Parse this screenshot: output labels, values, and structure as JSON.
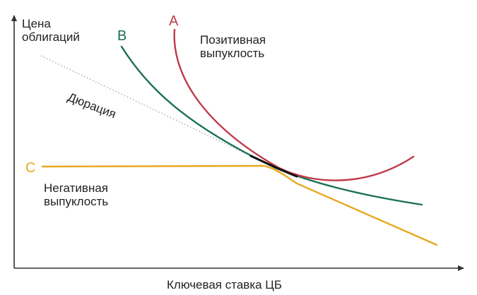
{
  "axes": {
    "y_label": "Цена\nоблигаций",
    "x_label": "Ключевая ставка ЦБ"
  },
  "curves": [
    {
      "letter": "A",
      "label": "Позитивная\nвыпуклость",
      "color": "#c03a49"
    },
    {
      "letter": "B",
      "label": "",
      "color": "#1a7052"
    },
    {
      "letter": "C",
      "label": "Негативная\nвыпуклость",
      "color": "#e8a820"
    }
  ],
  "duration_line": {
    "label": "Дюрация",
    "color": "#9a9a9a"
  },
  "colors": {
    "axis": "#333333",
    "tangent": "#111111"
  }
}
